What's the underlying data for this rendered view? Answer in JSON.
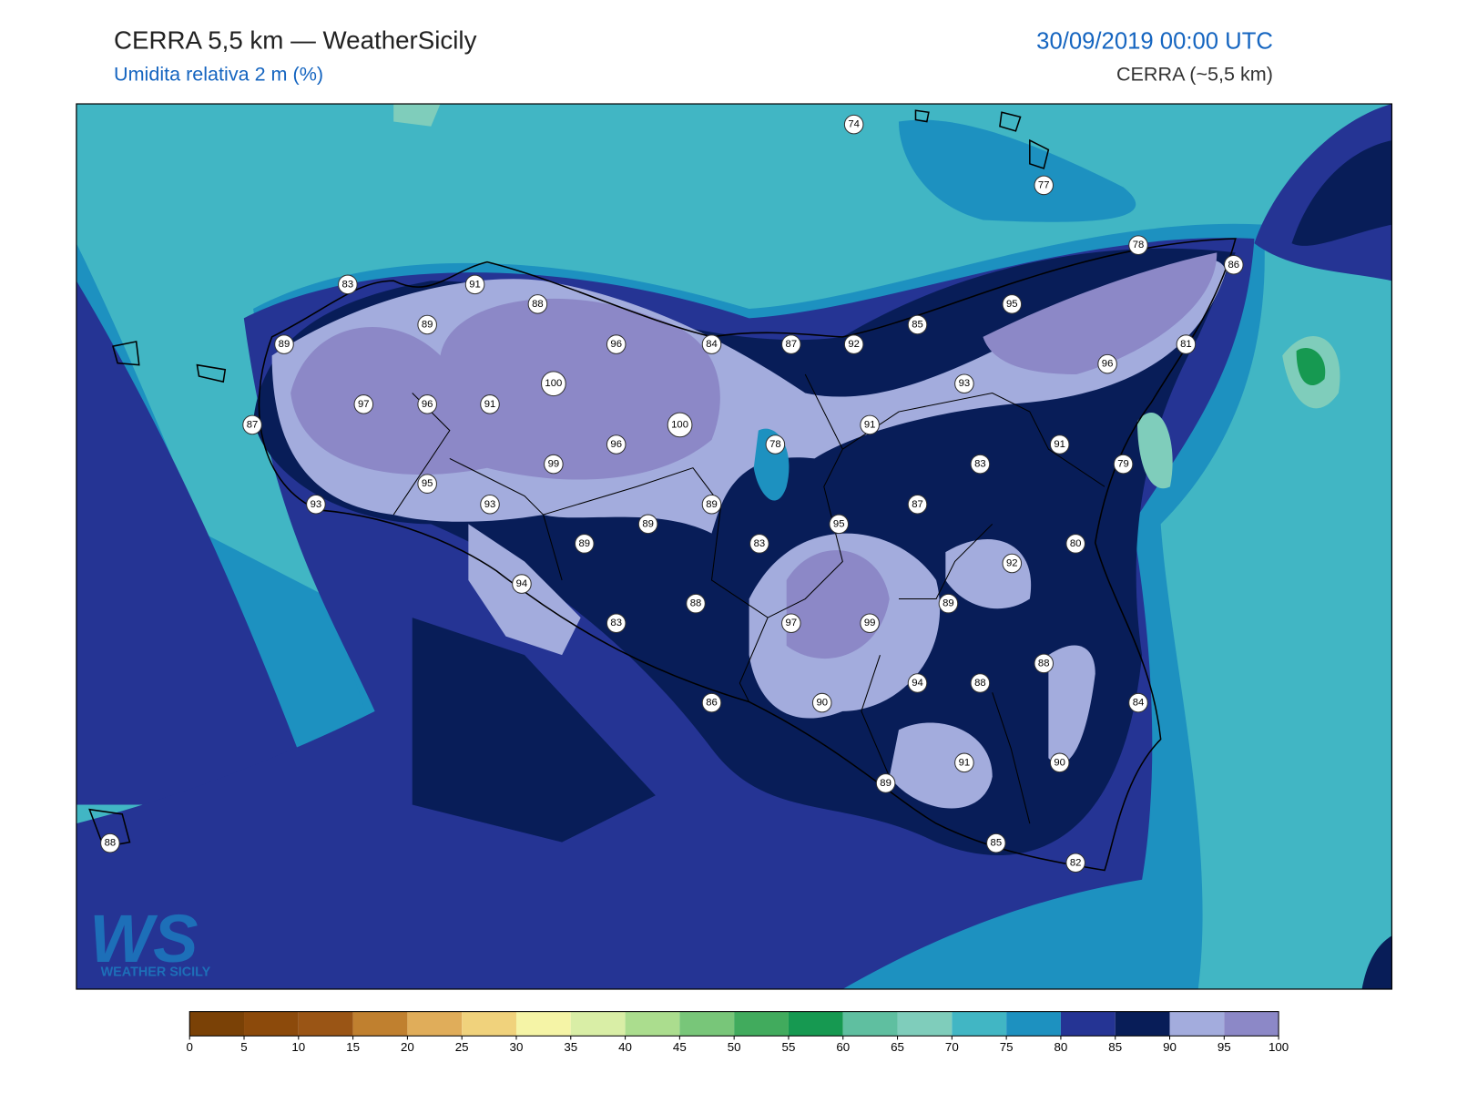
{
  "header": {
    "title": "CERRA 5,5 km — WeatherSicily",
    "subtitle": "Umidita relativa 2 m (%)",
    "datetime": "30/09/2019 00:00 UTC",
    "model": "CERRA (~5,5 km)"
  },
  "stations": [
    74,
    77,
    78,
    86,
    83,
    91,
    88,
    89,
    96,
    84,
    87,
    92,
    85,
    95,
    81,
    96,
    89,
    87,
    97,
    96,
    91,
    100,
    100,
    96,
    99,
    93,
    91,
    78,
    83,
    91,
    79,
    95,
    93,
    89,
    89,
    87,
    95,
    89,
    83,
    80,
    92,
    93,
    94,
    88,
    89,
    83,
    97,
    99,
    94,
    88,
    88,
    86,
    90,
    84,
    91,
    90,
    89,
    85,
    82,
    88
  ],
  "colorbar": {
    "ticks": [
      0,
      5,
      10,
      15,
      20,
      25,
      30,
      35,
      40,
      45,
      50,
      55,
      60,
      65,
      70,
      75,
      80,
      85,
      90,
      95,
      100
    ],
    "colors": [
      "#7a4106",
      "#8c4a0b",
      "#9a5515",
      "#c0802f",
      "#e0ad5a",
      "#f0d27c",
      "#f5f4a6",
      "#d9eea6",
      "#abdd8e",
      "#78c679",
      "#41ab5d",
      "#169951",
      "#5fbfa0",
      "#7fcdbb",
      "#41b6c4",
      "#1d91c0",
      "#253494",
      "#081d58",
      "#a3acdd",
      "#8c88c7"
    ]
  },
  "logo": {
    "mark": "WS",
    "text": "WEATHER SICILY"
  }
}
